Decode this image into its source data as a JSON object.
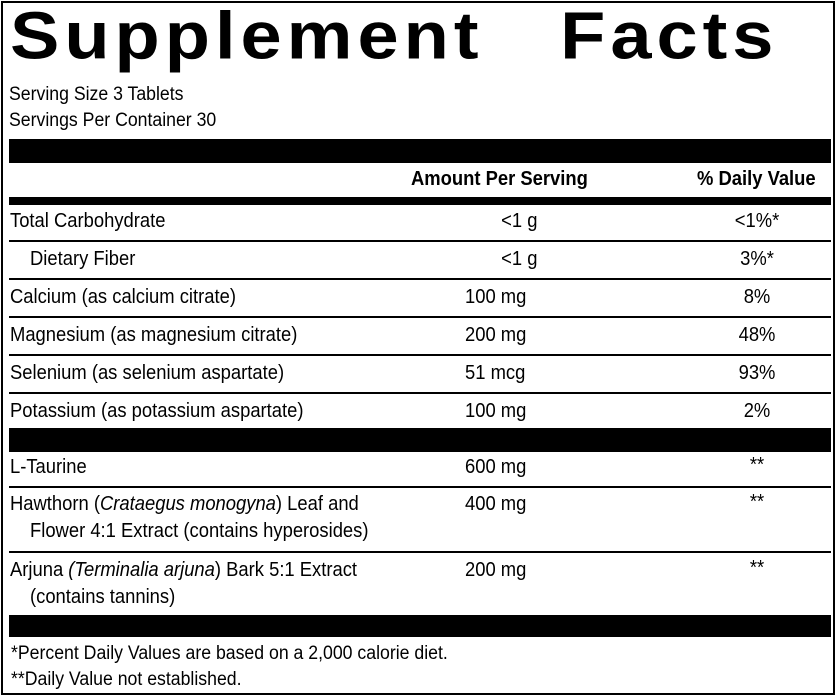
{
  "title": "Supplement   Facts",
  "serving_size": "Serving Size 3 Tablets",
  "servings_per_container": "Servings Per Container 30",
  "columns": {
    "amount": "Amount Per Serving",
    "daily_value": "% Daily Value"
  },
  "nutrients": [
    {
      "name": "Total Carbohydrate",
      "amount": "<1 g",
      "dv": "<1%*"
    },
    {
      "name": "Dietary Fiber",
      "amount": "<1 g",
      "dv": "3%*"
    },
    {
      "name": "Calcium (as calcium citrate)",
      "amount": "100 mg",
      "dv": "8%"
    },
    {
      "name": "Magnesium (as magnesium citrate)",
      "amount": "200 mg",
      "dv": "48%"
    },
    {
      "name": "Selenium (as selenium aspartate)",
      "amount": "51 mcg",
      "dv": "93%"
    },
    {
      "name": "Potassium (as potassium aspartate)",
      "amount": "100 mg",
      "dv": "2%"
    }
  ],
  "other_ingredients": [
    {
      "name": "L-Taurine",
      "amount": "600 mg",
      "dv": "**"
    },
    {
      "name_parts": [
        "Hawthorn (",
        "Crataegus monogyna",
        ") Leaf and"
      ],
      "name_line2": "Flower 4:1 Extract (contains hyperosides)",
      "amount": "400 mg",
      "dv": "**"
    },
    {
      "name_parts": [
        "Arjuna ",
        "(Terminalia arjuna",
        ") Bark 5:1 Extract"
      ],
      "name_line2": "(contains tannins)",
      "amount": "200 mg",
      "dv": "**"
    }
  ],
  "footnotes": [
    "*Percent Daily Values are based on a 2,000 calorie diet.",
    "**Daily Value not established."
  ]
}
